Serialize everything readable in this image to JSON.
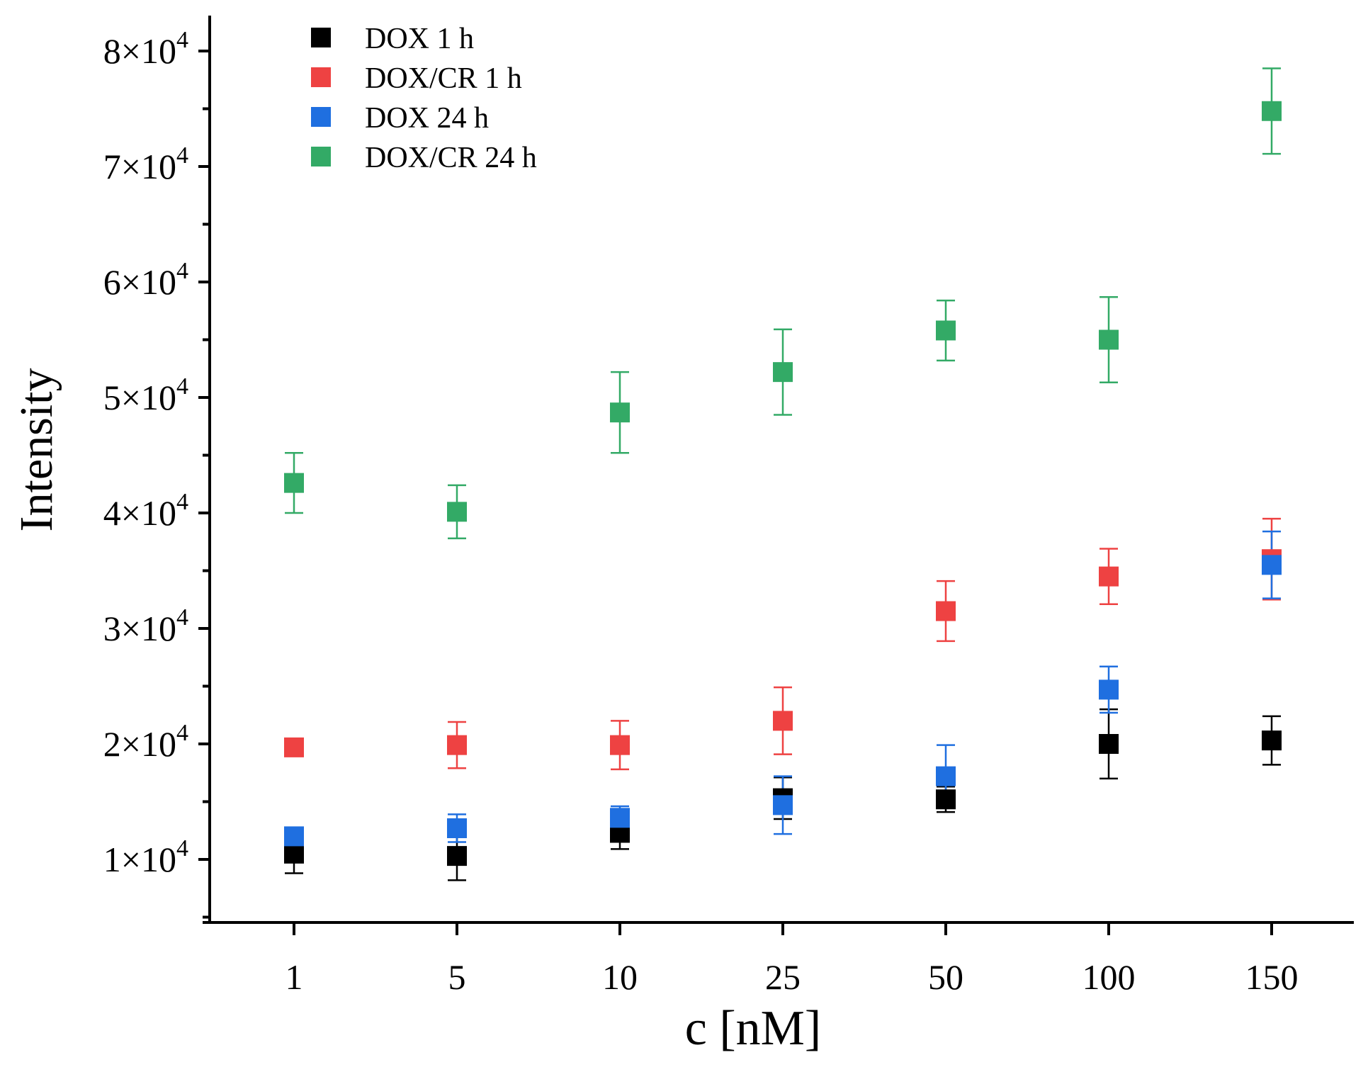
{
  "chart_data": {
    "type": "scatter",
    "title": "",
    "xlabel": "c [nM]",
    "ylabel": "Intensity",
    "x_type": "categorical",
    "categories": [
      "1",
      "5",
      "10",
      "25",
      "50",
      "100",
      "150"
    ],
    "ylim": [
      5000,
      82500
    ],
    "y_ticks": [
      {
        "value": 10000,
        "mantissa": "1",
        "exponent": "4"
      },
      {
        "value": 20000,
        "mantissa": "2",
        "exponent": "4"
      },
      {
        "value": 30000,
        "mantissa": "3",
        "exponent": "4"
      },
      {
        "value": 40000,
        "mantissa": "4",
        "exponent": "4"
      },
      {
        "value": 50000,
        "mantissa": "5",
        "exponent": "4"
      },
      {
        "value": 60000,
        "mantissa": "6",
        "exponent": "4"
      },
      {
        "value": 70000,
        "mantissa": "7",
        "exponent": "4"
      },
      {
        "value": 80000,
        "mantissa": "8",
        "exponent": "4"
      }
    ],
    "y_tick_times": "×10",
    "y_minor_step": 5000,
    "grid": false,
    "legend_position": "top-left",
    "series": [
      {
        "name": "DOX 1 h",
        "color": "#000000",
        "values": [
          10500,
          10300,
          12300,
          15300,
          15200,
          20000,
          20300
        ],
        "errors": [
          1700,
          2100,
          1400,
          1800,
          1100,
          3000,
          2100
        ]
      },
      {
        "name": "DOX/CR 1 h",
        "color": "#ee4242",
        "values": [
          19700,
          19900,
          19900,
          22000,
          31500,
          34500,
          36000
        ],
        "errors": [
          0,
          2000,
          2100,
          2900,
          2600,
          2400,
          3500
        ]
      },
      {
        "name": "DOX 24 h",
        "color": "#1f6fe0",
        "values": [
          12000,
          12700,
          13600,
          14700,
          17200,
          24700,
          35500
        ],
        "errors": [
          0,
          1200,
          1000,
          2500,
          2700,
          2000,
          2900
        ]
      },
      {
        "name": "DOX/CR 24 h",
        "color": "#33aa66",
        "values": [
          42600,
          40100,
          48700,
          52200,
          55800,
          55000,
          74800
        ],
        "errors": [
          2600,
          2300,
          3500,
          3700,
          2600,
          3700,
          3700
        ]
      }
    ]
  }
}
